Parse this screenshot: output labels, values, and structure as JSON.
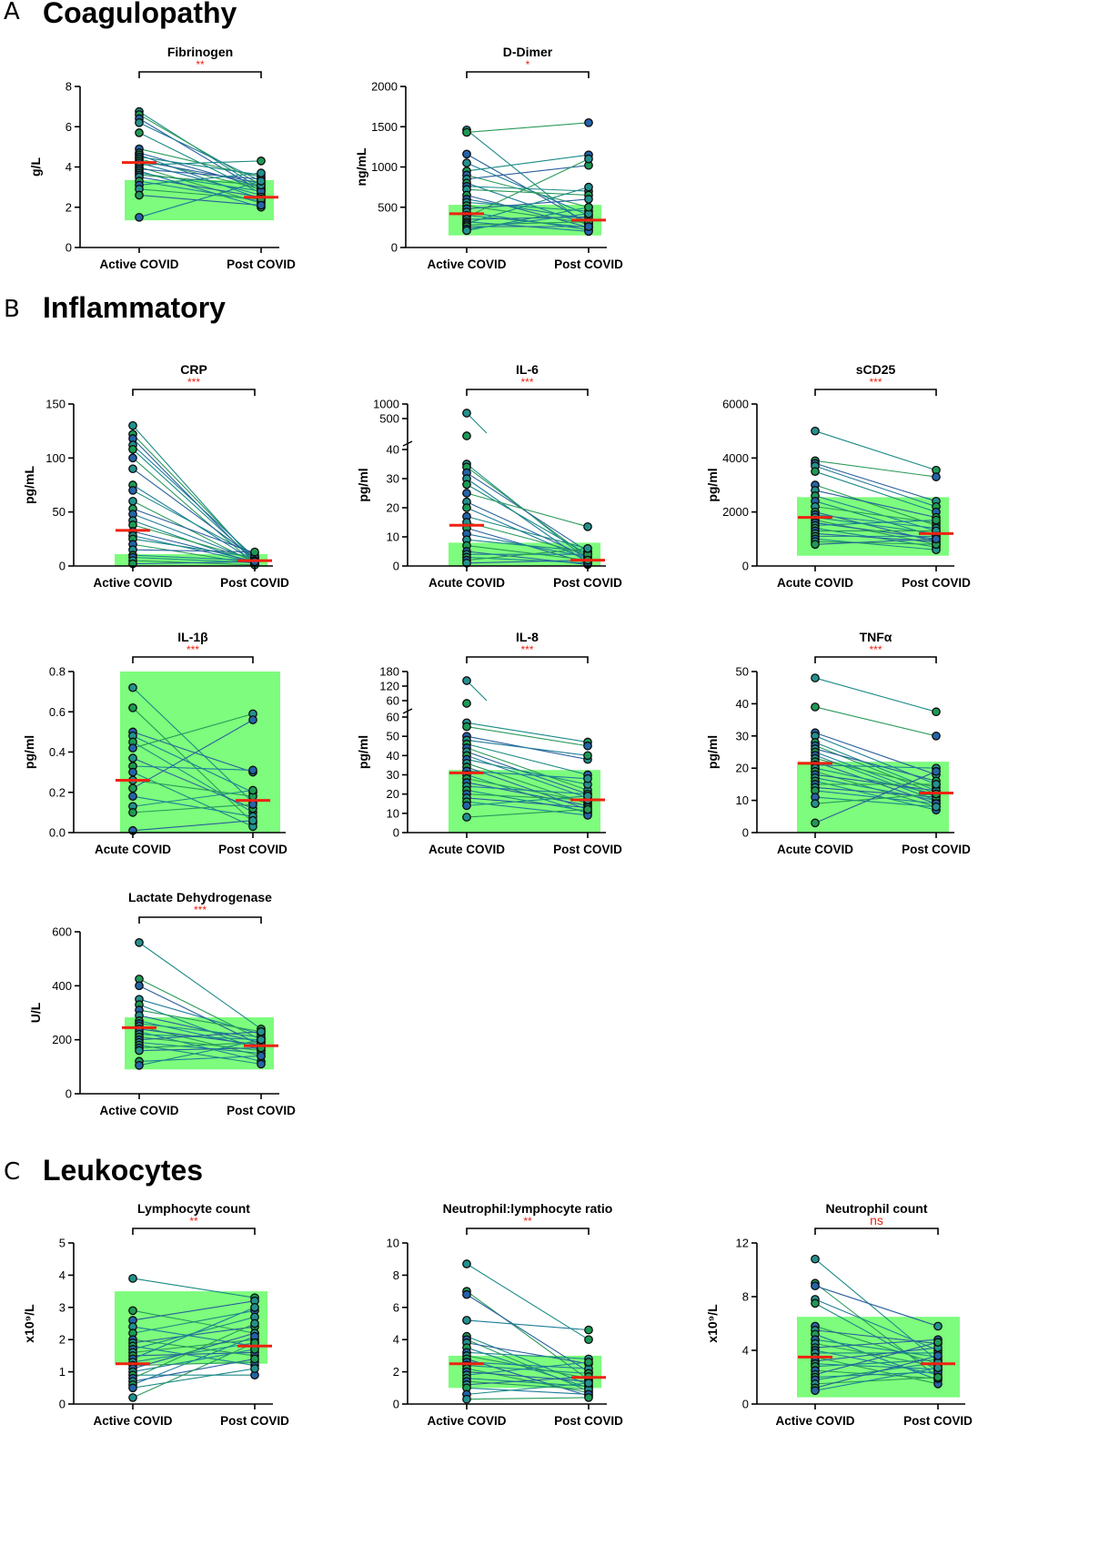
{
  "sections": [
    {
      "letter": "A",
      "title": "Coagulopathy"
    },
    {
      "letter": "B",
      "title": "Inflammatory"
    },
    {
      "letter": "C",
      "title": "Leukocytes"
    }
  ],
  "colors": {
    "reference_band": "#7dfc7d",
    "median_line": "#ee2211",
    "significance": "#ee2211",
    "point_fill_teal": "#23918e",
    "point_fill_green": "#1e9a55",
    "point_fill_blue": "#2563a8",
    "line_colors": [
      "#1a8a86",
      "#2a9a5a",
      "#2a5f9e",
      "#1f7d9a"
    ]
  },
  "chart_data": [
    {
      "type": "scatter",
      "title": "Fibrinogen",
      "ylabel": "g/L",
      "categories": [
        "Active COVID",
        "Post COVID"
      ],
      "significance": "**",
      "ylim": [
        0,
        8
      ],
      "yticks": [
        0,
        2,
        4,
        6,
        8
      ],
      "reference_range": [
        1.35,
        3.35
      ],
      "medians": [
        4.22,
        2.5
      ],
      "pairs": [
        [
          6.75,
          2.9
        ],
        [
          6.6,
          3.1
        ],
        [
          6.4,
          2.8
        ],
        [
          6.2,
          3.3
        ],
        [
          5.7,
          2.7
        ],
        [
          4.9,
          3.5
        ],
        [
          4.7,
          3.0
        ],
        [
          4.6,
          2.4
        ],
        [
          4.5,
          3.6
        ],
        [
          4.4,
          2.9
        ],
        [
          4.3,
          3.2
        ],
        [
          4.2,
          2.6
        ],
        [
          4.1,
          4.3
        ],
        [
          4.0,
          2.2
        ],
        [
          3.9,
          3.4
        ],
        [
          3.8,
          2.0
        ],
        [
          3.7,
          2.8
        ],
        [
          3.6,
          3.1
        ],
        [
          3.5,
          2.5
        ],
        [
          3.3,
          2.3
        ],
        [
          3.1,
          3.7
        ],
        [
          2.9,
          2.4
        ],
        [
          2.6,
          2.1
        ],
        [
          1.5,
          3.3
        ]
      ]
    },
    {
      "type": "scatter",
      "title": "D-Dimer",
      "ylabel": "ng/mL",
      "categories": [
        "Active COVID",
        "Post COVID"
      ],
      "significance": "*",
      "ylim": [
        0,
        2000
      ],
      "yticks": [
        0,
        500,
        1000,
        1500,
        2000
      ],
      "reference_range": [
        150,
        530
      ],
      "medians": [
        420,
        340
      ],
      "pairs": [
        [
          1460,
          250
        ],
        [
          1430,
          1550
        ],
        [
          1160,
          300
        ],
        [
          1050,
          400
        ],
        [
          950,
          1150
        ],
        [
          900,
          500
        ],
        [
          850,
          1020
        ],
        [
          800,
          280
        ],
        [
          760,
          700
        ],
        [
          720,
          650
        ],
        [
          650,
          250
        ],
        [
          600,
          350
        ],
        [
          560,
          450
        ],
        [
          520,
          300
        ],
        [
          480,
          600
        ],
        [
          440,
          220
        ],
        [
          400,
          250
        ],
        [
          380,
          1100
        ],
        [
          350,
          380
        ],
        [
          320,
          200
        ],
        [
          300,
          750
        ],
        [
          280,
          320
        ],
        [
          260,
          260
        ],
        [
          230,
          420
        ],
        [
          210,
          500
        ]
      ]
    },
    {
      "type": "scatter",
      "title": "CRP",
      "ylabel": "pg/mL",
      "categories": [
        "Active COVID",
        "Post COVID"
      ],
      "significance": "***",
      "ylim": [
        0,
        150
      ],
      "yticks": [
        0,
        50,
        100,
        150
      ],
      "reference_range": [
        0,
        11
      ],
      "medians": [
        33,
        5
      ],
      "pairs": [
        [
          130,
          4
        ],
        [
          122,
          6
        ],
        [
          118,
          3
        ],
        [
          112,
          8
        ],
        [
          108,
          5
        ],
        [
          100,
          2
        ],
        [
          90,
          7
        ],
        [
          75,
          4
        ],
        [
          70,
          9
        ],
        [
          60,
          3
        ],
        [
          53,
          12
        ],
        [
          48,
          5
        ],
        [
          42,
          2
        ],
        [
          38,
          6
        ],
        [
          32,
          4
        ],
        [
          28,
          3
        ],
        [
          25,
          8
        ],
        [
          20,
          2
        ],
        [
          15,
          13
        ],
        [
          10,
          5
        ],
        [
          8,
          3
        ],
        [
          5,
          1
        ],
        [
          2,
          4
        ]
      ]
    },
    {
      "type": "scatter",
      "title": "IL-6",
      "ylabel": "pg/ml",
      "categories": [
        "Acute COVID",
        "Post COVID"
      ],
      "significance": "***",
      "broken_axis": {
        "lower_ticks": [
          0,
          10,
          20,
          30,
          40
        ],
        "upper_ticks": [
          500,
          1000
        ]
      },
      "ylim": [
        0,
        40
      ],
      "reference_range": [
        0,
        8
      ],
      "medians": [
        14,
        2
      ],
      "pairs": [
        [
          35,
          2
        ],
        [
          34,
          3
        ],
        [
          32,
          5
        ],
        [
          30,
          1
        ],
        [
          28,
          4
        ],
        [
          25,
          13.5
        ],
        [
          22,
          3
        ],
        [
          20,
          2
        ],
        [
          17,
          6
        ],
        [
          15,
          4
        ],
        [
          13,
          1
        ],
        [
          11,
          3
        ],
        [
          9,
          5
        ],
        [
          7,
          2
        ],
        [
          5,
          0.5
        ],
        [
          4,
          4
        ],
        [
          3,
          1
        ],
        [
          2,
          6
        ],
        [
          1,
          2
        ]
      ]
    },
    {
      "type": "scatter",
      "title": "sCD25",
      "ylabel": "pg/ml",
      "categories": [
        "Acute COVID",
        "Post COVID"
      ],
      "significance": "***",
      "ylim": [
        0,
        6000
      ],
      "yticks": [
        0,
        2000,
        4000,
        6000
      ],
      "reference_range": [
        380,
        2550
      ],
      "medians": [
        1800,
        1200
      ],
      "pairs": [
        [
          5000,
          3550
        ],
        [
          3900,
          3300
        ],
        [
          3800,
          2400
        ],
        [
          3700,
          2200
        ],
        [
          3500,
          2000
        ],
        [
          3000,
          1500
        ],
        [
          2800,
          1800
        ],
        [
          2600,
          1300
        ],
        [
          2400,
          1100
        ],
        [
          2200,
          1600
        ],
        [
          2000,
          900
        ],
        [
          1900,
          1400
        ],
        [
          1800,
          1200
        ],
        [
          1700,
          800
        ],
        [
          1600,
          1000
        ],
        [
          1500,
          1700
        ],
        [
          1400,
          700
        ],
        [
          1300,
          1300
        ],
        [
          1200,
          900
        ],
        [
          1100,
          1100
        ],
        [
          1000,
          600
        ],
        [
          900,
          800
        ],
        [
          800,
          1000
        ]
      ]
    },
    {
      "type": "scatter",
      "title": "IL-1β",
      "ylabel": "pg/ml",
      "categories": [
        "Acute COVID",
        "Post COVID"
      ],
      "significance": "***",
      "ylim": [
        0,
        0.8
      ],
      "yticks": [
        0.0,
        0.2,
        0.4,
        0.6,
        0.8
      ],
      "reference_range": [
        0,
        0.81
      ],
      "medians": [
        0.26,
        0.16
      ],
      "pairs": [
        [
          0.72,
          0.15
        ],
        [
          0.62,
          0.05
        ],
        [
          0.5,
          0.3
        ],
        [
          0.48,
          0.2
        ],
        [
          0.45,
          0.1
        ],
        [
          0.42,
          0.59
        ],
        [
          0.37,
          0.12
        ],
        [
          0.33,
          0.31
        ],
        [
          0.3,
          0.03
        ],
        [
          0.26,
          0.18
        ],
        [
          0.22,
          0.56
        ],
        [
          0.18,
          0.08
        ],
        [
          0.13,
          0.21
        ],
        [
          0.1,
          0.14
        ],
        [
          0.01,
          0.06
        ]
      ]
    },
    {
      "type": "scatter",
      "title": "IL-8",
      "ylabel": "pg/ml",
      "categories": [
        "Acute COVID",
        "Post COVID"
      ],
      "significance": "***",
      "broken_axis": {
        "lower_ticks": [
          0,
          10,
          20,
          30,
          40,
          50,
          60
        ],
        "upper_ticks": [
          60,
          120,
          180
        ]
      },
      "ylim": [
        0,
        60
      ],
      "reference_range": [
        0,
        32.5
      ],
      "medians": [
        31,
        17
      ],
      "pairs": [
        [
          57,
          47
        ],
        [
          55,
          45
        ],
        [
          50,
          38
        ],
        [
          48,
          40
        ],
        [
          46,
          30
        ],
        [
          44,
          22
        ],
        [
          42,
          20
        ],
        [
          40,
          18
        ],
        [
          38,
          25
        ],
        [
          36,
          15
        ],
        [
          34,
          12
        ],
        [
          32,
          28
        ],
        [
          30,
          10
        ],
        [
          28,
          16
        ],
        [
          26,
          14
        ],
        [
          24,
          20
        ],
        [
          22,
          11
        ],
        [
          20,
          17
        ],
        [
          18,
          13
        ],
        [
          16,
          9
        ],
        [
          14,
          19
        ],
        [
          8,
          12
        ]
      ]
    },
    {
      "type": "scatter",
      "title": "TNFα",
      "ylabel": "pg/ml",
      "categories": [
        "Acute COVID",
        "Post COVID"
      ],
      "significance": "***",
      "ylim": [
        0,
        50
      ],
      "yticks": [
        0,
        10,
        20,
        30,
        40,
        50
      ],
      "reference_range": [
        0,
        22
      ],
      "medians": [
        21.5,
        12.3
      ],
      "pairs": [
        [
          48,
          37.5
        ],
        [
          39,
          30
        ],
        [
          31,
          18
        ],
        [
          30,
          15
        ],
        [
          28,
          13
        ],
        [
          27,
          12
        ],
        [
          26,
          16
        ],
        [
          25,
          11
        ],
        [
          24,
          10
        ],
        [
          23,
          14
        ],
        [
          22,
          9
        ],
        [
          21,
          20
        ],
        [
          20,
          12
        ],
        [
          19,
          8
        ],
        [
          18,
          13
        ],
        [
          17,
          10
        ],
        [
          16,
          7
        ],
        [
          15,
          15
        ],
        [
          14,
          11
        ],
        [
          13,
          9
        ],
        [
          11,
          8
        ],
        [
          9,
          12
        ],
        [
          3,
          19
        ]
      ]
    },
    {
      "type": "scatter",
      "title": "Lactate Dehydrogenase",
      "ylabel": "U/L",
      "categories": [
        "Active COVID",
        "Post COVID"
      ],
      "significance": "***",
      "ylim": [
        0,
        600
      ],
      "yticks": [
        0,
        200,
        400,
        600
      ],
      "reference_range": [
        90,
        283
      ],
      "medians": [
        245,
        178
      ],
      "pairs": [
        [
          560,
          240
        ],
        [
          425,
          200
        ],
        [
          400,
          180
        ],
        [
          350,
          220
        ],
        [
          330,
          160
        ],
        [
          310,
          230
        ],
        [
          290,
          190
        ],
        [
          270,
          170
        ],
        [
          260,
          210
        ],
        [
          250,
          140
        ],
        [
          240,
          180
        ],
        [
          230,
          120
        ],
        [
          220,
          200
        ],
        [
          210,
          160
        ],
        [
          200,
          230
        ],
        [
          190,
          150
        ],
        [
          180,
          110
        ],
        [
          170,
          190
        ],
        [
          160,
          170
        ],
        [
          120,
          140
        ],
        [
          105,
          200
        ]
      ]
    },
    {
      "type": "scatter",
      "title": "Lymphocyte count",
      "ylabel": "x10⁹/L",
      "categories": [
        "Active COVID",
        "Post COVID"
      ],
      "significance": "**",
      "ylim": [
        0,
        5
      ],
      "yticks": [
        0,
        1,
        2,
        3,
        4,
        5
      ],
      "reference_range": [
        1.25,
        3.5
      ],
      "medians": [
        1.25,
        1.8
      ],
      "pairs": [
        [
          3.9,
          3.3
        ],
        [
          2.9,
          2.2
        ],
        [
          2.6,
          3.2
        ],
        [
          2.4,
          1.8
        ],
        [
          2.2,
          2.9
        ],
        [
          2.0,
          1.5
        ],
        [
          1.9,
          2.4
        ],
        [
          1.8,
          1.2
        ],
        [
          1.7,
          2.7
        ],
        [
          1.6,
          2.0
        ],
        [
          1.5,
          1.6
        ],
        [
          1.4,
          3.0
        ],
        [
          1.3,
          1.9
        ],
        [
          1.2,
          1.3
        ],
        [
          1.1,
          2.2
        ],
        [
          1.0,
          1.7
        ],
        [
          0.9,
          0.9
        ],
        [
          0.8,
          2.5
        ],
        [
          0.7,
          1.4
        ],
        [
          0.6,
          2.1
        ],
        [
          0.5,
          1.1
        ],
        [
          0.2,
          1.9
        ]
      ]
    },
    {
      "type": "scatter",
      "title": "Neutrophil:lymphocyte ratio",
      "ylabel": "",
      "categories": [
        "Active COVID",
        "Post COVID"
      ],
      "significance": "**",
      "ylim": [
        0,
        10
      ],
      "yticks": [
        0,
        2,
        4,
        6,
        8,
        10
      ],
      "reference_range": [
        1,
        3
      ],
      "medians": [
        2.5,
        1.65
      ],
      "pairs": [
        [
          8.7,
          4.0
        ],
        [
          7.0,
          1.5
        ],
        [
          6.8,
          2.0
        ],
        [
          5.2,
          4.6
        ],
        [
          4.2,
          1.2
        ],
        [
          4.0,
          0.8
        ],
        [
          3.8,
          2.5
        ],
        [
          3.5,
          1.0
        ],
        [
          3.2,
          2.8
        ],
        [
          3.0,
          1.6
        ],
        [
          2.8,
          0.5
        ],
        [
          2.6,
          2.2
        ],
        [
          2.4,
          1.9
        ],
        [
          2.2,
          0.7
        ],
        [
          2.0,
          1.4
        ],
        [
          1.8,
          2.6
        ],
        [
          1.6,
          1.1
        ],
        [
          1.4,
          0.9
        ],
        [
          1.2,
          1.7
        ],
        [
          1.0,
          0.6
        ],
        [
          0.6,
          1.3
        ],
        [
          0.3,
          0.4
        ]
      ]
    },
    {
      "type": "scatter",
      "title": "Neutrophil count",
      "ylabel": "x10⁹/L",
      "categories": [
        "Active COVID",
        "Post COVID"
      ],
      "significance": "ns",
      "ylim": [
        0,
        12
      ],
      "yticks": [
        0,
        4,
        8,
        12
      ],
      "reference_range": [
        0.5,
        6.5
      ],
      "medians": [
        3.5,
        3.0
      ],
      "pairs": [
        [
          10.8,
          3.2
        ],
        [
          9.0,
          2.0
        ],
        [
          8.8,
          5.8
        ],
        [
          7.8,
          4.0
        ],
        [
          7.5,
          2.5
        ],
        [
          5.8,
          3.0
        ],
        [
          5.5,
          4.5
        ],
        [
          5.2,
          1.8
        ],
        [
          4.8,
          3.5
        ],
        [
          4.5,
          2.8
        ],
        [
          4.2,
          4.8
        ],
        [
          4.0,
          2.2
        ],
        [
          3.8,
          3.8
        ],
        [
          3.5,
          1.5
        ],
        [
          3.2,
          4.2
        ],
        [
          3.0,
          2.6
        ],
        [
          2.8,
          3.3
        ],
        [
          2.5,
          1.9
        ],
        [
          2.2,
          4.6
        ],
        [
          2.0,
          2.4
        ],
        [
          1.8,
          3.1
        ],
        [
          1.5,
          2.0
        ],
        [
          1.2,
          3.6
        ],
        [
          1.0,
          2.7
        ]
      ]
    }
  ]
}
